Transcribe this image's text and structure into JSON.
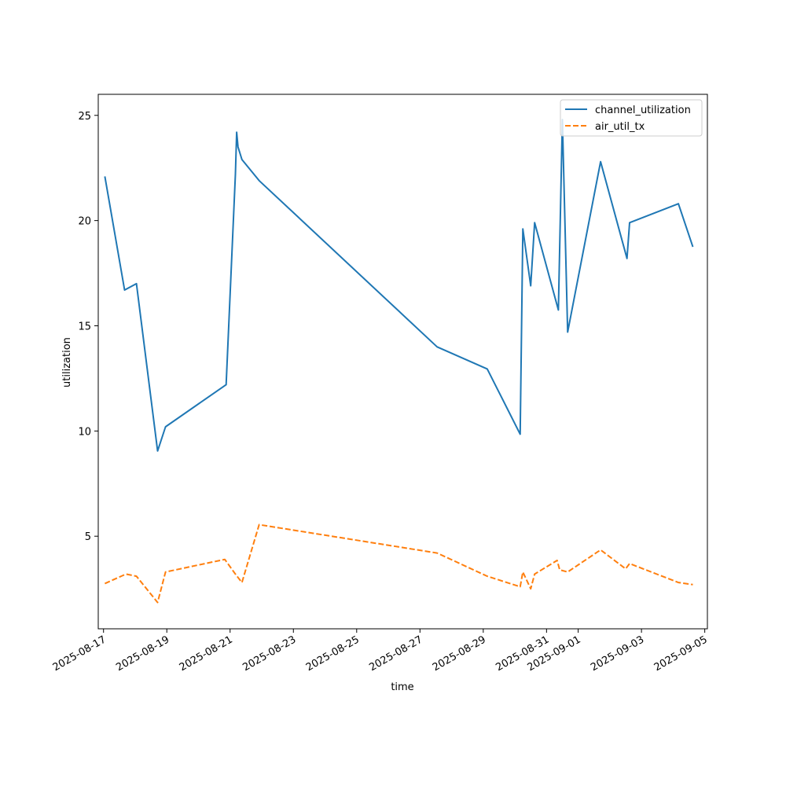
{
  "chart_data": {
    "type": "line",
    "xlabel": "time",
    "ylabel": "utilization",
    "xlim": [
      "2025-08-16T20:00",
      "2025-09-05T02:00"
    ],
    "ylim": [
      0.6,
      26
    ],
    "x_ticks": [
      "2025-08-17",
      "2025-08-19",
      "2025-08-21",
      "2025-08-23",
      "2025-08-25",
      "2025-08-27",
      "2025-08-29",
      "2025-08-31",
      "2025-09-01",
      "2025-09-03",
      "2025-09-05"
    ],
    "y_ticks": [
      5,
      10,
      15,
      20,
      25
    ],
    "legend_position": "top-right",
    "grid": false,
    "series": [
      {
        "name": "channel_utilization",
        "color": "#1f77b4",
        "style": "solid",
        "points": [
          [
            "2025-08-17T01:00",
            22.1
          ],
          [
            "2025-08-17T16:00",
            16.7
          ],
          [
            "2025-08-18T01:00",
            17.0
          ],
          [
            "2025-08-18T17:00",
            9.05
          ],
          [
            "2025-08-18T23:00",
            10.2
          ],
          [
            "2025-08-20T21:00",
            12.2
          ],
          [
            "2025-08-21T04:00",
            22.2
          ],
          [
            "2025-08-21T05:00",
            24.2
          ],
          [
            "2025-08-21T06:00",
            23.5
          ],
          [
            "2025-08-21T09:00",
            22.9
          ],
          [
            "2025-08-21T22:00",
            21.9
          ],
          [
            "2025-08-27T13:00",
            14.0
          ],
          [
            "2025-08-29T03:00",
            12.95
          ],
          [
            "2025-08-30T04:00",
            9.85
          ],
          [
            "2025-08-30T06:00",
            19.6
          ],
          [
            "2025-08-30T12:00",
            16.9
          ],
          [
            "2025-08-30T15:00",
            19.9
          ],
          [
            "2025-08-31T09:00",
            15.75
          ],
          [
            "2025-08-31T12:00",
            24.8
          ],
          [
            "2025-08-31T16:00",
            14.7
          ],
          [
            "2025-09-01T17:00",
            22.8
          ],
          [
            "2025-09-02T13:00",
            18.2
          ],
          [
            "2025-09-02T15:00",
            19.9
          ],
          [
            "2025-09-04T04:00",
            20.8
          ],
          [
            "2025-09-04T15:00",
            18.75
          ]
        ]
      },
      {
        "name": "air_util_tx",
        "color": "#ff7f0e",
        "style": "dashed",
        "points": [
          [
            "2025-08-17T01:00",
            2.75
          ],
          [
            "2025-08-17T17:00",
            3.2
          ],
          [
            "2025-08-18T01:00",
            3.1
          ],
          [
            "2025-08-18T17:00",
            1.85
          ],
          [
            "2025-08-18T23:00",
            3.3
          ],
          [
            "2025-08-20T20:00",
            3.9
          ],
          [
            "2025-08-21T04:00",
            3.2
          ],
          [
            "2025-08-21T09:00",
            2.8
          ],
          [
            "2025-08-21T22:00",
            5.55
          ],
          [
            "2025-08-27T13:00",
            4.2
          ],
          [
            "2025-08-29T03:00",
            3.1
          ],
          [
            "2025-08-30T04:00",
            2.6
          ],
          [
            "2025-08-30T06:00",
            3.3
          ],
          [
            "2025-08-30T12:00",
            2.5
          ],
          [
            "2025-08-30T15:00",
            3.2
          ],
          [
            "2025-08-31T08:00",
            3.85
          ],
          [
            "2025-08-31T10:00",
            3.4
          ],
          [
            "2025-08-31T16:00",
            3.3
          ],
          [
            "2025-09-01T17:00",
            4.35
          ],
          [
            "2025-09-02T12:00",
            3.45
          ],
          [
            "2025-09-02T15:00",
            3.7
          ],
          [
            "2025-09-04T04:00",
            2.8
          ],
          [
            "2025-09-04T15:00",
            2.7
          ]
        ]
      }
    ]
  }
}
